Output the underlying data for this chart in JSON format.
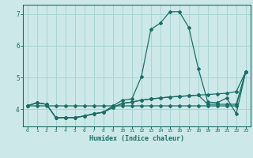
{
  "xlabel": "Humidex (Indice chaleur)",
  "bg_color": "#cce8e8",
  "grid_color": "#aad4d4",
  "line_color": "#1a7068",
  "xlim": [
    -0.5,
    23.5
  ],
  "ylim": [
    3.45,
    7.3
  ],
  "xticks": [
    0,
    1,
    2,
    3,
    4,
    5,
    6,
    7,
    8,
    9,
    10,
    11,
    12,
    13,
    14,
    15,
    16,
    17,
    18,
    19,
    20,
    21,
    22,
    23
  ],
  "yticks": [
    4,
    5,
    6,
    7
  ],
  "series1": [
    4.1,
    4.2,
    4.15,
    3.72,
    3.73,
    3.73,
    3.78,
    3.85,
    3.9,
    4.1,
    4.28,
    4.32,
    5.02,
    6.52,
    6.72,
    7.08,
    7.08,
    6.58,
    5.28,
    4.22,
    4.2,
    4.35,
    3.85,
    5.18
  ],
  "series2": [
    4.1,
    4.2,
    4.15,
    3.72,
    3.73,
    3.73,
    3.78,
    3.85,
    3.9,
    4.05,
    4.18,
    4.22,
    4.28,
    4.32,
    4.35,
    4.38,
    4.4,
    4.42,
    4.44,
    4.46,
    4.48,
    4.5,
    4.55,
    5.18
  ],
  "series3": [
    4.1,
    4.2,
    4.15,
    3.72,
    3.73,
    3.73,
    3.78,
    3.85,
    3.9,
    4.05,
    4.18,
    4.22,
    4.28,
    4.32,
    4.35,
    4.38,
    4.4,
    4.42,
    4.44,
    4.15,
    4.15,
    4.15,
    4.15,
    5.18
  ],
  "series4": [
    4.1,
    4.1,
    4.1,
    4.1,
    4.1,
    4.1,
    4.1,
    4.1,
    4.1,
    4.1,
    4.1,
    4.1,
    4.1,
    4.1,
    4.1,
    4.1,
    4.1,
    4.1,
    4.1,
    4.1,
    4.1,
    4.1,
    4.1,
    5.18
  ]
}
